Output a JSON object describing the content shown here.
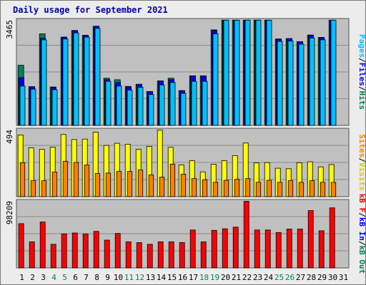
{
  "chart_data": {
    "type": "bar",
    "title": "Daily usage for September 2021",
    "colors": {
      "hits": "#00805c",
      "files": "#0000ff",
      "pages": "#00c0ff",
      "visits": "#ffff00",
      "sites": "#ff8000",
      "kb_in": "#0000ff",
      "kb_out": "#00805c",
      "kb_f": "#ff0000",
      "weekend": "#00805c",
      "weekday": "#000000"
    },
    "days": [
      "1",
      "2",
      "3",
      "4",
      "5",
      "6",
      "7",
      "8",
      "9",
      "10",
      "11",
      "12",
      "13",
      "14",
      "15",
      "16",
      "17",
      "18",
      "19",
      "20",
      "21",
      "22",
      "23",
      "24",
      "25",
      "26",
      "27",
      "28",
      "29",
      "30",
      "31"
    ],
    "weekend_days": [
      4,
      5,
      11,
      12,
      18,
      19,
      25,
      26
    ],
    "top": {
      "ymax_label": "3465",
      "ymax": 3465,
      "series": [
        {
          "name": "Hits",
          "values": [
            1990,
            1280,
            3030,
            1270,
            2920,
            3140,
            2980,
            3280,
            1560,
            1510,
            1290,
            1360,
            1120,
            1470,
            1560,
            1150,
            1640,
            1640,
            3160,
            3860,
            3820,
            3980,
            3920,
            3680,
            2860,
            2870,
            2770,
            2990,
            2910,
            3700,
            0
          ]
        },
        {
          "name": "Files",
          "values": [
            1580,
            1280,
            2880,
            1250,
            2920,
            3140,
            2980,
            3280,
            1510,
            1420,
            1270,
            1360,
            1120,
            1470,
            1510,
            1150,
            1640,
            1640,
            3140,
            3860,
            3820,
            3980,
            3920,
            3680,
            2860,
            2870,
            2770,
            2990,
            2910,
            3700,
            0
          ]
        },
        {
          "name": "Pages",
          "values": [
            1300,
            1200,
            2830,
            1180,
            2860,
            3060,
            2920,
            3210,
            1460,
            1300,
            1170,
            1260,
            1020,
            1340,
            1420,
            1060,
            1460,
            1460,
            3030,
            3780,
            3760,
            3900,
            3840,
            3480,
            2780,
            2790,
            2690,
            2890,
            2830,
            3520,
            0
          ]
        }
      ]
    },
    "middle": {
      "ymax_label": "494",
      "ymax": 494,
      "series": [
        {
          "name": "Visits",
          "values": [
            460,
            364,
            353,
            369,
            463,
            426,
            429,
            480,
            382,
            398,
            391,
            354,
            375,
            522,
            368,
            237,
            268,
            185,
            242,
            268,
            306,
            400,
            251,
            254,
            212,
            208,
            253,
            260,
            222,
            239,
            0
          ]
        },
        {
          "name": "Sites",
          "values": [
            253,
            119,
            119,
            183,
            264,
            255,
            236,
            172,
            176,
            188,
            188,
            199,
            162,
            145,
            242,
            168,
            135,
            126,
            107,
            122,
            129,
            135,
            107,
            122,
            107,
            119,
            107,
            119,
            107,
            107,
            0
          ]
        }
      ]
    },
    "bottom": {
      "ymax_label": "98209",
      "ymax": 98209,
      "series": [
        {
          "name": "KB F",
          "values": [
            65600,
            38700,
            68000,
            35000,
            50500,
            51700,
            50500,
            54200,
            41200,
            51100,
            38700,
            37500,
            35000,
            38700,
            38700,
            37500,
            56200,
            38700,
            55600,
            58000,
            60400,
            99200,
            56200,
            56200,
            52500,
            57500,
            57500,
            85000,
            55000,
            89000,
            0
          ]
        }
      ]
    },
    "right_labels": {
      "top": [
        {
          "text": "Pages",
          "color": "#00c0ff"
        },
        {
          "text": "/",
          "color": "#000000"
        },
        {
          "text": "Files",
          "color": "#0000ff"
        },
        {
          "text": "/",
          "color": "#000000"
        },
        {
          "text": "Hits",
          "color": "#00805c"
        }
      ],
      "middle": [
        {
          "text": "Sites",
          "color": "#ff8000"
        },
        {
          "text": "/",
          "color": "#000000"
        },
        {
          "text": "Visits",
          "color": "#d8c800"
        }
      ],
      "bottom": [
        {
          "text": "kB F",
          "color": "#ff0000"
        },
        {
          "text": "/",
          "color": "#000000"
        },
        {
          "text": "kB In",
          "color": "#0000ff"
        },
        {
          "text": "/",
          "color": "#000000"
        },
        {
          "text": "kB Out",
          "color": "#00805c"
        }
      ]
    }
  }
}
